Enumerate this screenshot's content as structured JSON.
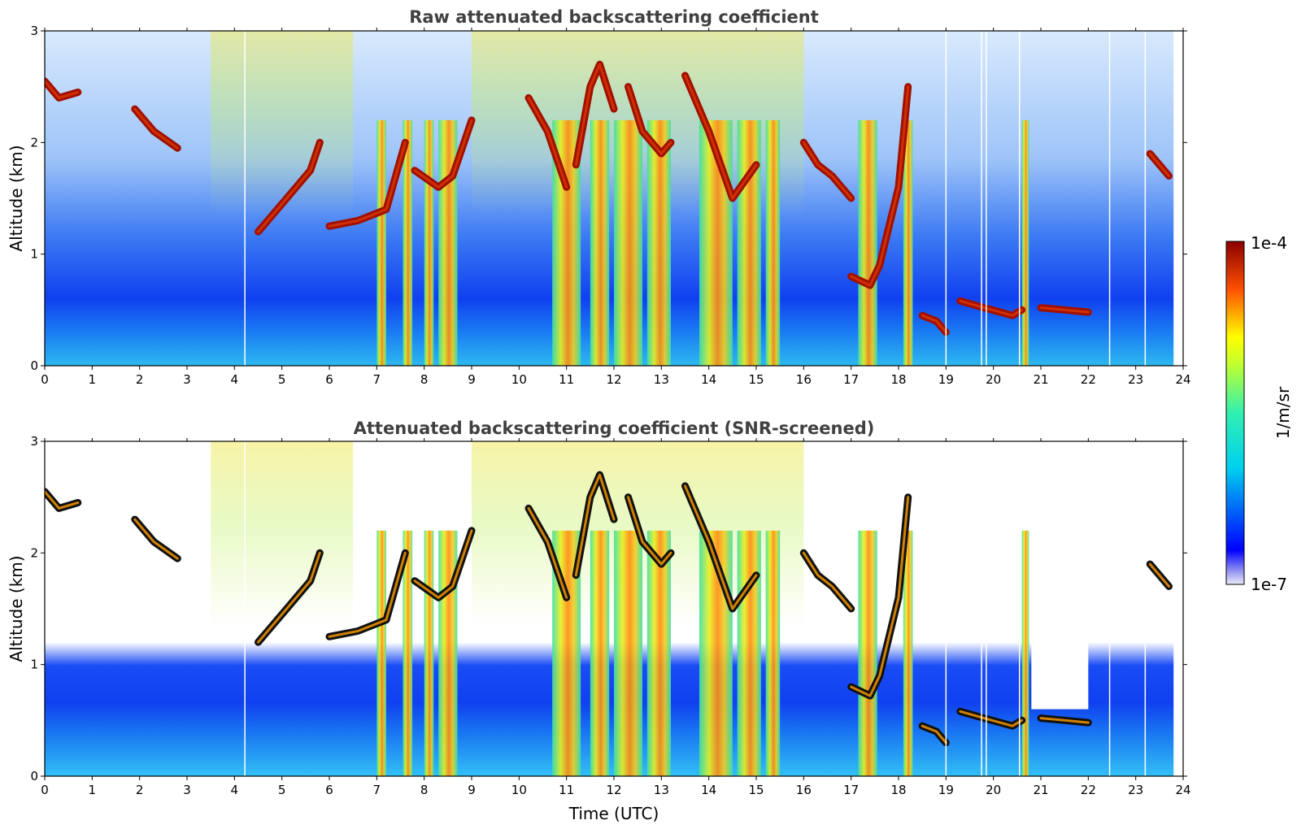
{
  "chart_data": [
    {
      "type": "heatmap",
      "title": "Raw attenuated backscattering coefficient",
      "ylabel": "Altitude (km)",
      "xlabel": "",
      "xlim": [
        0,
        24
      ],
      "ylim": [
        0,
        3
      ],
      "xticks": [
        "0",
        "1",
        "2",
        "3",
        "4",
        "5",
        "6",
        "7",
        "8",
        "9",
        "10",
        "11",
        "12",
        "13",
        "14",
        "15",
        "16",
        "17",
        "18",
        "19",
        "20",
        "21",
        "22",
        "23",
        "24"
      ],
      "yticks": [
        "0",
        "1",
        "2",
        "3"
      ],
      "screened": false
    },
    {
      "type": "heatmap",
      "title": "Attenuated backscattering coefficient (SNR-screened)",
      "ylabel": "Altitude (km)",
      "xlabel": "Time (UTC)",
      "xlim": [
        0,
        24
      ],
      "ylim": [
        0,
        3
      ],
      "xticks": [
        "0",
        "1",
        "2",
        "3",
        "4",
        "5",
        "6",
        "7",
        "8",
        "9",
        "10",
        "11",
        "12",
        "13",
        "14",
        "15",
        "16",
        "17",
        "18",
        "19",
        "20",
        "21",
        "22",
        "23",
        "24"
      ],
      "yticks": [
        "0",
        "1",
        "2",
        "3"
      ],
      "screened": true
    }
  ],
  "colorbar": {
    "label": "1/m/sr",
    "max_label": "1e-4",
    "min_label": "1e-7",
    "colormap": "jet",
    "scale": "log"
  },
  "features": {
    "precip_bands": [
      [
        7.0,
        7.2
      ],
      [
        7.55,
        7.75
      ],
      [
        8.0,
        8.2
      ],
      [
        8.3,
        8.7
      ],
      [
        10.7,
        11.3
      ],
      [
        11.5,
        11.9
      ],
      [
        12.0,
        12.6
      ],
      [
        12.7,
        13.2
      ],
      [
        13.8,
        14.5
      ],
      [
        14.6,
        15.1
      ],
      [
        15.2,
        15.5
      ],
      [
        17.15,
        17.55
      ],
      [
        18.1,
        18.3
      ],
      [
        20.6,
        20.75
      ]
    ],
    "cloud_segments": [
      [
        [
          0.0,
          2.55
        ],
        [
          0.3,
          2.4
        ],
        [
          0.7,
          2.45
        ]
      ],
      [
        [
          1.9,
          2.3
        ],
        [
          2.3,
          2.1
        ],
        [
          2.8,
          1.95
        ]
      ],
      [
        [
          4.5,
          1.2
        ],
        [
          5.0,
          1.45
        ],
        [
          5.6,
          1.75
        ],
        [
          5.8,
          2.0
        ]
      ],
      [
        [
          6.0,
          1.25
        ],
        [
          6.6,
          1.3
        ],
        [
          7.2,
          1.4
        ],
        [
          7.6,
          2.0
        ]
      ],
      [
        [
          7.8,
          1.75
        ],
        [
          8.3,
          1.6
        ],
        [
          8.6,
          1.7
        ],
        [
          9.0,
          2.2
        ]
      ],
      [
        [
          10.2,
          2.4
        ],
        [
          10.6,
          2.1
        ],
        [
          11.0,
          1.6
        ]
      ],
      [
        [
          11.2,
          1.8
        ],
        [
          11.5,
          2.5
        ],
        [
          11.7,
          2.7
        ],
        [
          12.0,
          2.3
        ]
      ],
      [
        [
          12.3,
          2.5
        ],
        [
          12.6,
          2.1
        ],
        [
          13.0,
          1.9
        ],
        [
          13.2,
          2.0
        ]
      ],
      [
        [
          13.5,
          2.6
        ],
        [
          14.0,
          2.1
        ],
        [
          14.5,
          1.5
        ],
        [
          15.0,
          1.8
        ]
      ],
      [
        [
          16.0,
          2.0
        ],
        [
          16.3,
          1.8
        ],
        [
          16.6,
          1.7
        ],
        [
          17.0,
          1.5
        ]
      ],
      [
        [
          17.0,
          0.8
        ],
        [
          17.4,
          0.72
        ],
        [
          17.6,
          0.9
        ],
        [
          18.0,
          1.6
        ],
        [
          18.2,
          2.5
        ]
      ],
      [
        [
          18.5,
          0.45
        ],
        [
          18.8,
          0.4
        ],
        [
          19.0,
          0.3
        ]
      ],
      [
        [
          19.3,
          0.58
        ],
        [
          19.8,
          0.52
        ],
        [
          20.4,
          0.45
        ],
        [
          20.6,
          0.5
        ]
      ],
      [
        [
          21.0,
          0.52
        ],
        [
          21.5,
          0.5
        ],
        [
          22.0,
          0.48
        ]
      ],
      [
        [
          23.3,
          1.9
        ],
        [
          23.7,
          1.7
        ]
      ]
    ],
    "gaps_x": [
      4.22,
      19.0,
      19.75,
      19.85,
      20.55,
      22.45,
      23.2
    ],
    "clear_region": [
      [
        20.8,
        0.6
      ],
      [
        22.0,
        1.6
      ]
    ],
    "data_end_x": 23.8
  }
}
